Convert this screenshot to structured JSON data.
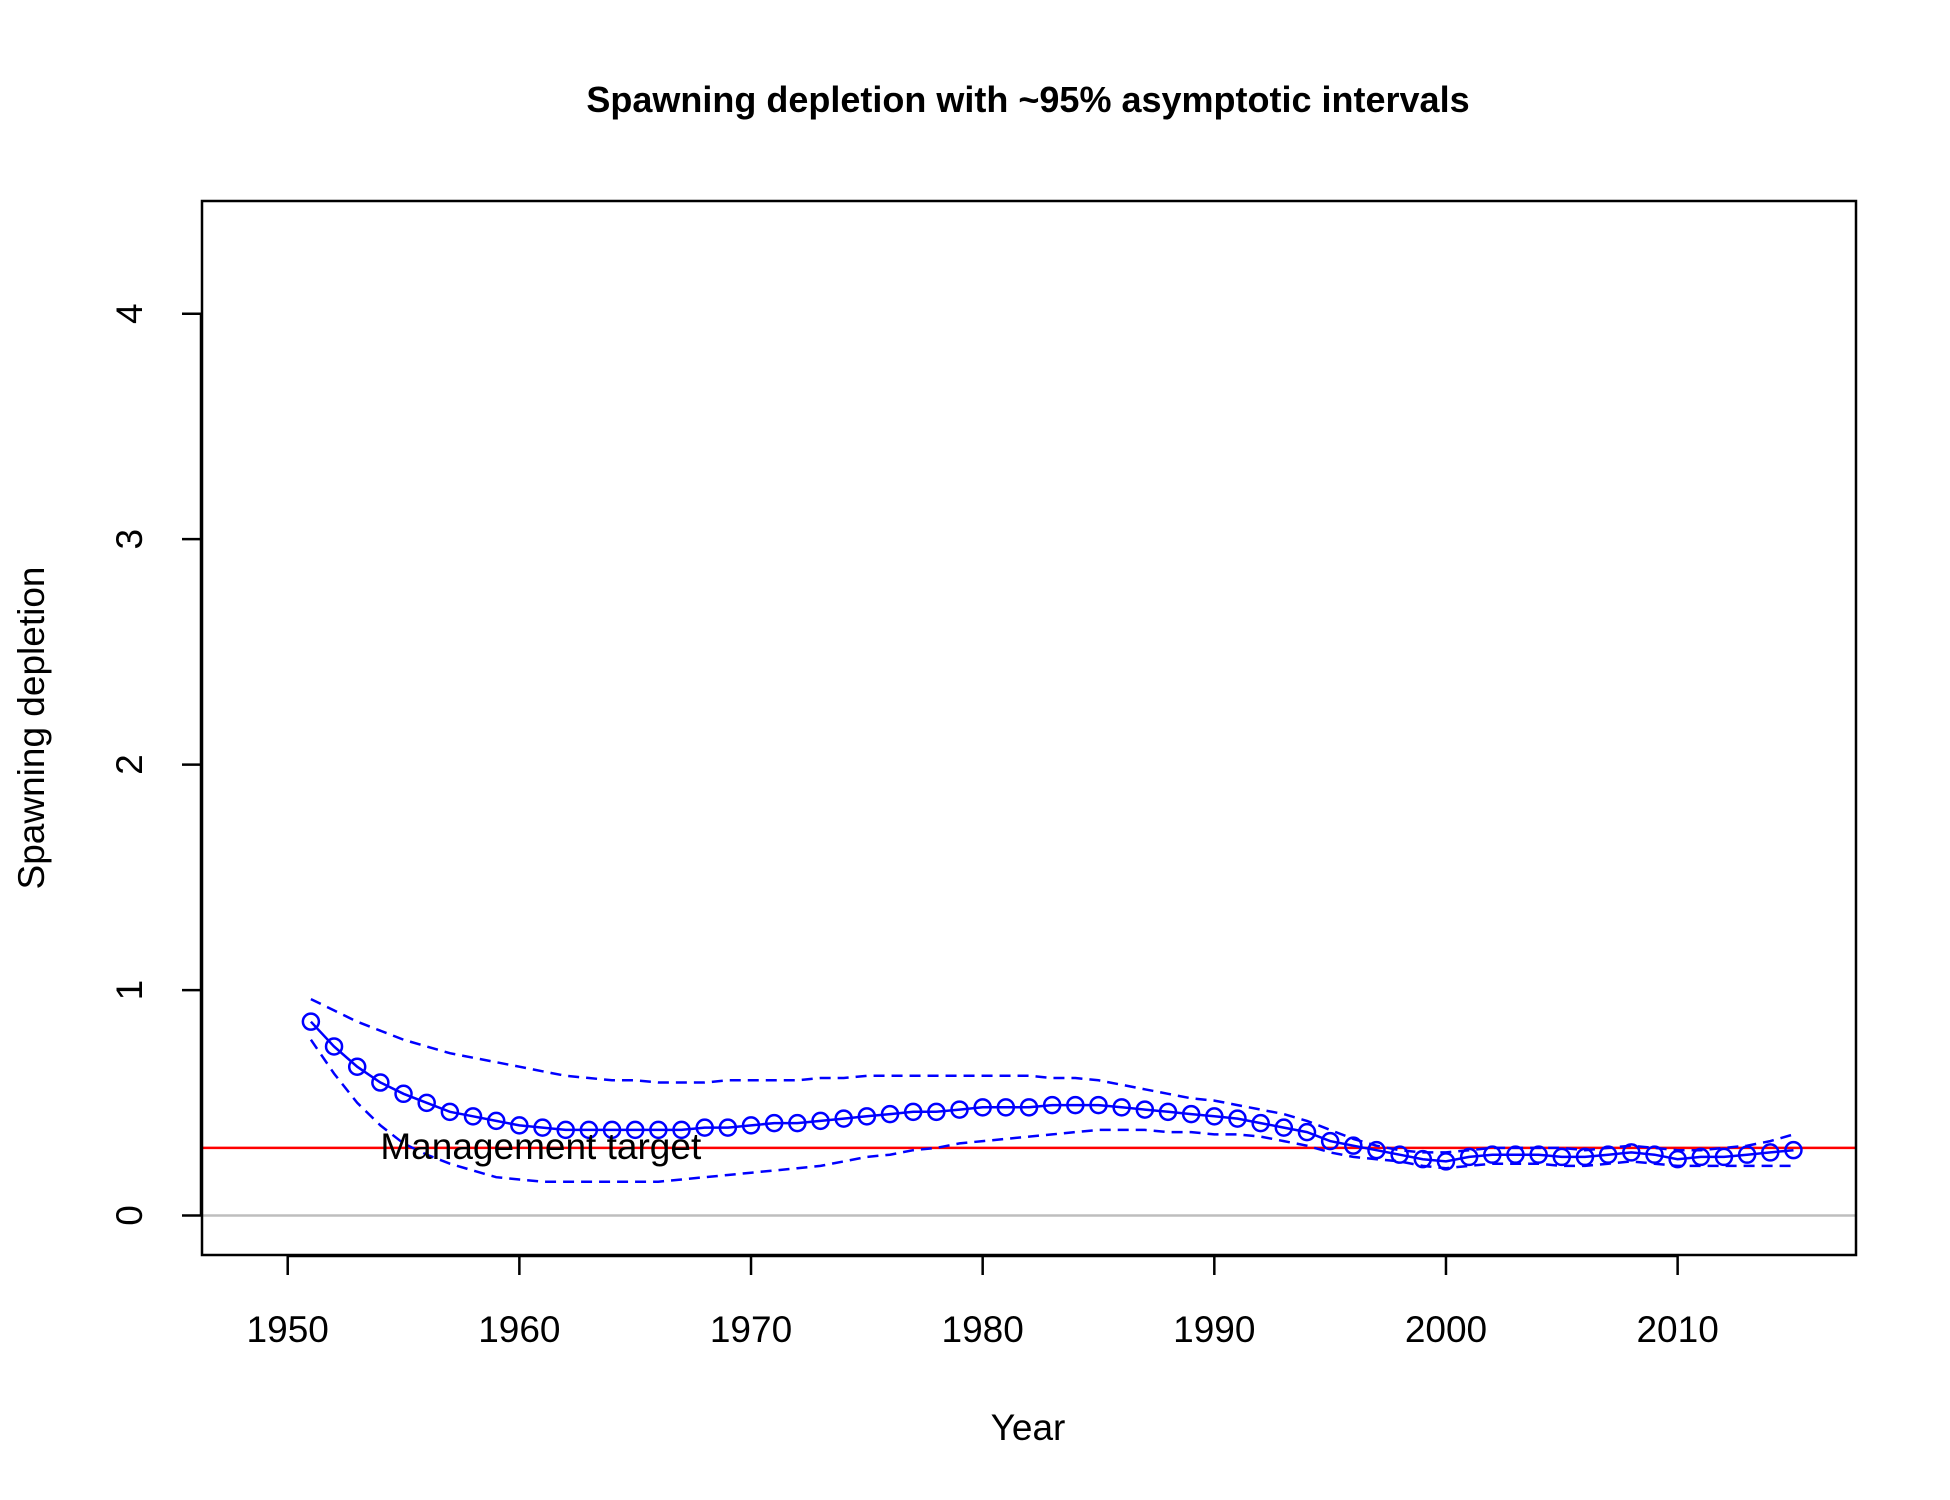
{
  "chart_data": {
    "type": "line",
    "title": "Spawning depletion with ~95% asymptotic intervals",
    "xlabel": "Year",
    "ylabel": "Spawning depletion",
    "xlim": [
      1946.3,
      2017.7
    ],
    "ylim": [
      -0.175,
      4.5
    ],
    "x_ticks": [
      "1950",
      "1960",
      "1970",
      "1980",
      "1990",
      "2000",
      "2010"
    ],
    "y_ticks": [
      "0",
      "1",
      "2",
      "3",
      "4"
    ],
    "grid": false,
    "legend": "none",
    "colors": {
      "series": "#0000ff",
      "target": "#ff0000",
      "zero_line": "#bebebe"
    },
    "reference_lines": [
      {
        "label": "Management target",
        "y": 0.3,
        "color": "#ff0000"
      },
      {
        "label": "",
        "y": 0.0,
        "color": "#bebebe"
      }
    ],
    "x": [
      1951,
      1952,
      1953,
      1954,
      1955,
      1956,
      1957,
      1958,
      1959,
      1960,
      1961,
      1962,
      1963,
      1964,
      1965,
      1966,
      1967,
      1968,
      1969,
      1970,
      1971,
      1972,
      1973,
      1974,
      1975,
      1976,
      1977,
      1978,
      1979,
      1980,
      1981,
      1982,
      1983,
      1984,
      1985,
      1986,
      1987,
      1988,
      1989,
      1990,
      1991,
      1992,
      1993,
      1994,
      1995,
      1996,
      1997,
      1998,
      1999,
      2000,
      2001,
      2002,
      2003,
      2004,
      2005,
      2006,
      2007,
      2008,
      2009,
      2010,
      2011,
      2012,
      2013,
      2014,
      2015
    ],
    "series": [
      {
        "style": "solid-with-circles",
        "values": [
          0.86,
          0.75,
          0.66,
          0.59,
          0.54,
          0.5,
          0.46,
          0.44,
          0.42,
          0.4,
          0.39,
          0.38,
          0.38,
          0.38,
          0.38,
          0.38,
          0.38,
          0.39,
          0.39,
          0.4,
          0.41,
          0.41,
          0.42,
          0.43,
          0.44,
          0.45,
          0.46,
          0.46,
          0.47,
          0.48,
          0.48,
          0.48,
          0.49,
          0.49,
          0.49,
          0.48,
          0.47,
          0.46,
          0.45,
          0.44,
          0.43,
          0.41,
          0.39,
          0.37,
          0.33,
          0.31,
          0.29,
          0.27,
          0.25,
          0.24,
          0.26,
          0.27,
          0.27,
          0.27,
          0.26,
          0.26,
          0.27,
          0.28,
          0.27,
          0.25,
          0.26,
          0.26,
          0.27,
          0.28,
          0.29
        ]
      },
      {
        "style": "dashed",
        "values": [
          0.96,
          0.91,
          0.86,
          0.82,
          0.78,
          0.75,
          0.72,
          0.7,
          0.68,
          0.66,
          0.64,
          0.62,
          0.61,
          0.6,
          0.6,
          0.59,
          0.59,
          0.59,
          0.6,
          0.6,
          0.6,
          0.6,
          0.61,
          0.61,
          0.62,
          0.62,
          0.62,
          0.62,
          0.62,
          0.62,
          0.62,
          0.62,
          0.61,
          0.61,
          0.6,
          0.58,
          0.56,
          0.54,
          0.52,
          0.51,
          0.49,
          0.47,
          0.45,
          0.42,
          0.38,
          0.34,
          0.31,
          0.29,
          0.28,
          0.28,
          0.29,
          0.3,
          0.3,
          0.3,
          0.3,
          0.29,
          0.3,
          0.31,
          0.3,
          0.29,
          0.29,
          0.3,
          0.31,
          0.33,
          0.36
        ]
      },
      {
        "style": "dashed",
        "values": [
          0.78,
          0.63,
          0.5,
          0.4,
          0.32,
          0.27,
          0.23,
          0.2,
          0.17,
          0.16,
          0.15,
          0.15,
          0.15,
          0.15,
          0.15,
          0.15,
          0.16,
          0.17,
          0.18,
          0.19,
          0.2,
          0.21,
          0.22,
          0.24,
          0.26,
          0.27,
          0.29,
          0.3,
          0.32,
          0.33,
          0.34,
          0.35,
          0.36,
          0.37,
          0.38,
          0.38,
          0.38,
          0.37,
          0.37,
          0.36,
          0.36,
          0.35,
          0.33,
          0.31,
          0.28,
          0.26,
          0.25,
          0.24,
          0.22,
          0.21,
          0.22,
          0.23,
          0.23,
          0.23,
          0.22,
          0.22,
          0.23,
          0.24,
          0.23,
          0.22,
          0.22,
          0.22,
          0.22,
          0.22,
          0.22
        ]
      }
    ]
  }
}
